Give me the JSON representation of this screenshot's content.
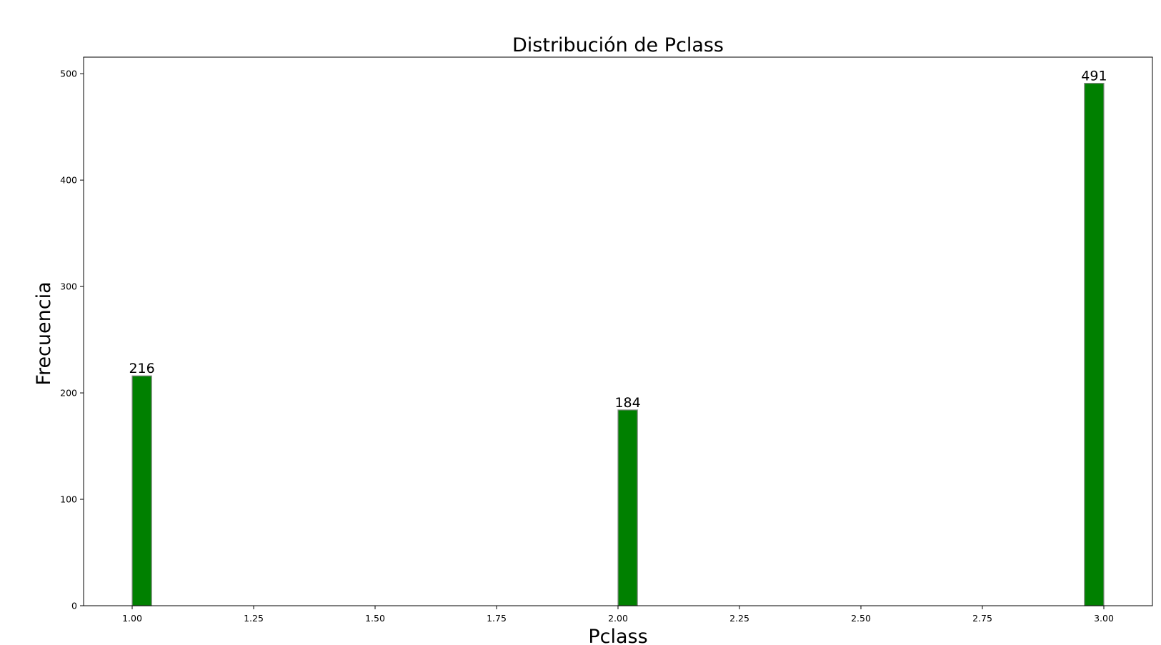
{
  "chart_data": {
    "type": "bar",
    "title": "Distribución de Pclass",
    "xlabel": "Pclass",
    "ylabel": "Frecuencia",
    "bars": [
      {
        "x_start": 1.0,
        "x_end": 1.04,
        "value": 216,
        "label": "216"
      },
      {
        "x_start": 2.0,
        "x_end": 2.04,
        "value": 184,
        "label": "184"
      },
      {
        "x_start": 2.96,
        "x_end": 3.0,
        "value": 491,
        "label": "491"
      }
    ],
    "xlim": [
      0.9,
      3.1
    ],
    "ylim": [
      0,
      515.55
    ],
    "x_ticks": [
      {
        "value": 1.0,
        "label": "1.00"
      },
      {
        "value": 1.25,
        "label": "1.25"
      },
      {
        "value": 1.5,
        "label": "1.50"
      },
      {
        "value": 1.75,
        "label": "1.75"
      },
      {
        "value": 2.0,
        "label": "2.00"
      },
      {
        "value": 2.25,
        "label": "2.25"
      },
      {
        "value": 2.5,
        "label": "2.50"
      },
      {
        "value": 2.75,
        "label": "2.75"
      },
      {
        "value": 3.0,
        "label": "3.00"
      }
    ],
    "y_ticks": [
      {
        "value": 0,
        "label": "0"
      },
      {
        "value": 100,
        "label": "100"
      },
      {
        "value": 200,
        "label": "200"
      },
      {
        "value": 300,
        "label": "300"
      },
      {
        "value": 400,
        "label": "400"
      },
      {
        "value": 500,
        "label": "500"
      }
    ],
    "grid": false,
    "legend": "none",
    "bar_color": "#008000",
    "bar_edge_color": "#888888"
  }
}
